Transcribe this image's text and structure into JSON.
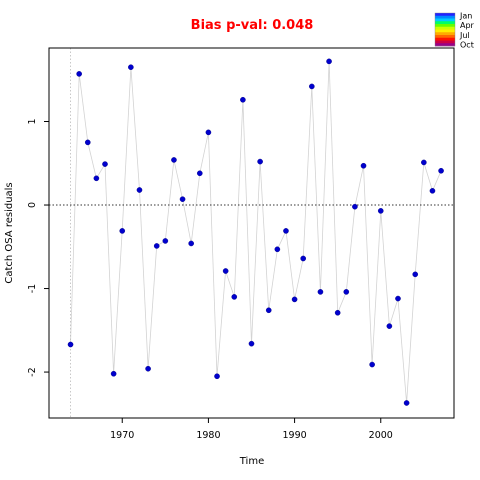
{
  "chart_data": {
    "type": "scatter",
    "title": "Bias p-val: 0.048",
    "title_color": "#ff0000",
    "xlabel": "Time",
    "ylabel": "Catch OSA residuals",
    "xlim": [
      1961.5,
      2008.5
    ],
    "ylim": [
      -2.55,
      1.88
    ],
    "x_ticks": [
      1970,
      1980,
      1990,
      2000
    ],
    "y_ticks": [
      -2,
      -1,
      0,
      1
    ],
    "reference_line_y": 0,
    "reference_line_x": 1964,
    "connect_points": true,
    "point_color": "#0000cd",
    "line_color": "#d3d3d3",
    "x": [
      1964,
      1965,
      1966,
      1967,
      1968,
      1969,
      1970,
      1971,
      1972,
      1973,
      1974,
      1975,
      1976,
      1977,
      1978,
      1979,
      1980,
      1981,
      1982,
      1983,
      1984,
      1985,
      1986,
      1987,
      1988,
      1989,
      1990,
      1991,
      1992,
      1993,
      1994,
      1995,
      1996,
      1997,
      1998,
      1999,
      2000,
      2001,
      2002,
      2003,
      2004,
      2005,
      2006,
      2007
    ],
    "y": [
      -1.67,
      1.57,
      0.75,
      0.32,
      0.49,
      -2.02,
      -0.31,
      1.65,
      0.18,
      -1.96,
      -0.49,
      -0.43,
      0.54,
      0.07,
      -0.46,
      0.38,
      0.87,
      -2.05,
      -0.79,
      -1.1,
      1.26,
      -1.66,
      0.52,
      -1.26,
      -0.53,
      -0.31,
      -1.13,
      -0.64,
      1.42,
      -1.04,
      1.72,
      -1.29,
      -1.04,
      -0.02,
      0.47,
      -1.91,
      -0.07,
      -1.45,
      -1.12,
      -2.37,
      -0.83,
      0.51,
      0.17,
      0.41
    ],
    "legend": {
      "placement": "top-right",
      "labels": [
        "Jan",
        "Apr",
        "Jul",
        "Oct"
      ],
      "colors": [
        "#2222ff",
        "#0088ff",
        "#00ccff",
        "#00ff66",
        "#66ff00",
        "#ccff00",
        "#ffee00",
        "#ffaa00",
        "#ff6600",
        "#ff1100",
        "#cc0044",
        "#990088"
      ]
    }
  }
}
